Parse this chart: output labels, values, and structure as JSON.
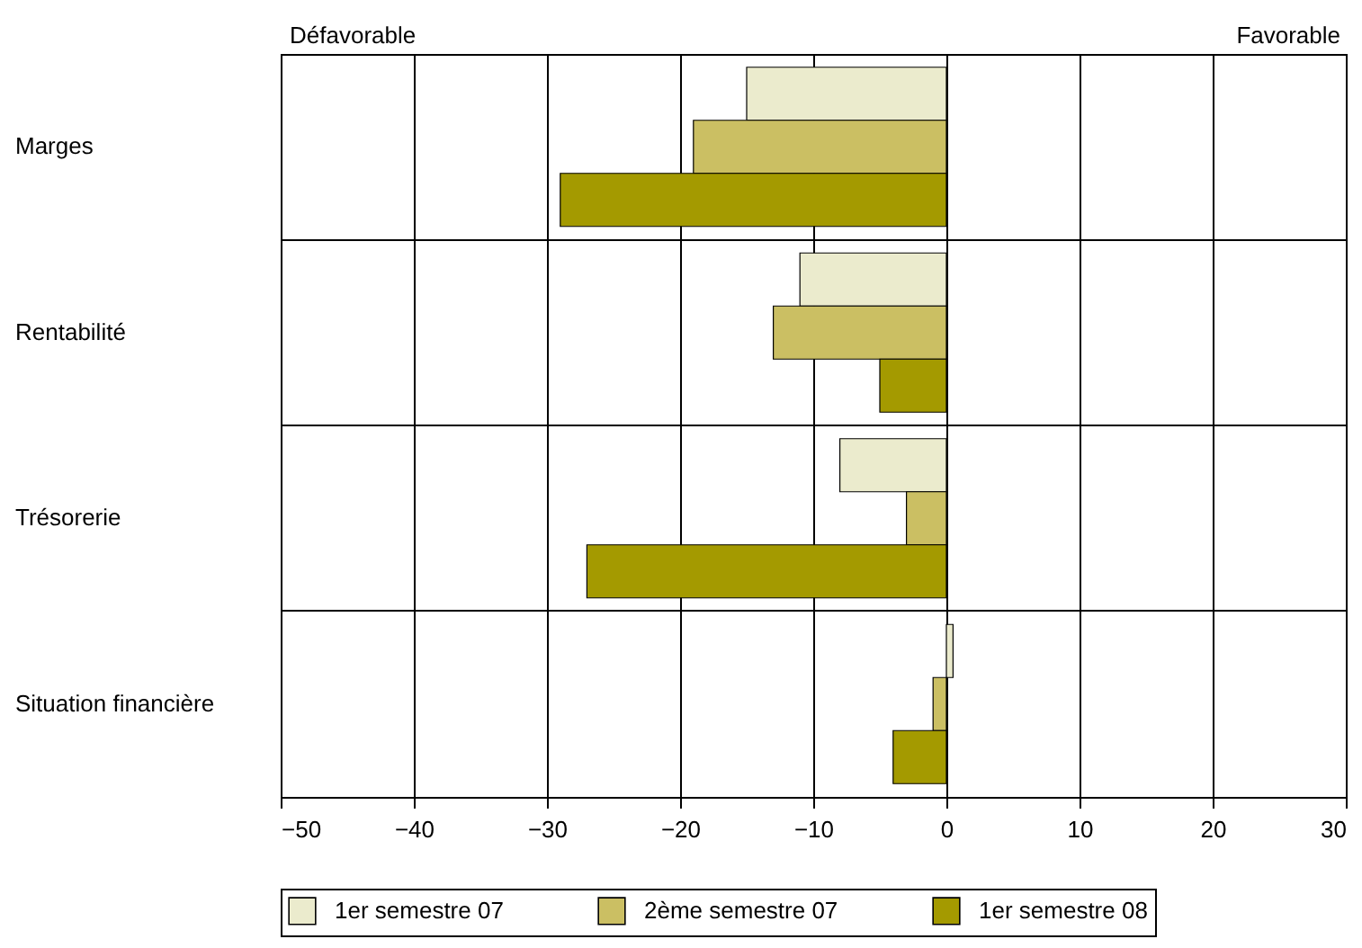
{
  "chart_data": {
    "type": "bar",
    "orientation": "horizontal",
    "categories": [
      "Marges",
      "Rentabilité",
      "Trésorerie",
      "Situation financière"
    ],
    "series": [
      {
        "name": "1er semestre 07",
        "color": "#ebebcd",
        "values": [
          -15,
          -11,
          -8,
          0.5
        ]
      },
      {
        "name": "2ème semestre 07",
        "color": "#cbbf63",
        "values": [
          -19,
          -13,
          -3,
          -1
        ]
      },
      {
        "name": "1er semestre 08",
        "color": "#a49a00",
        "values": [
          -29,
          -5,
          -27,
          -4
        ]
      }
    ],
    "xlim": [
      -50,
      30
    ],
    "xticks": [
      -50,
      -40,
      -30,
      -20,
      -10,
      0,
      10,
      20,
      30
    ],
    "grid": true,
    "legend": "bottom",
    "annotations": [
      "Défavorable",
      "Favorable"
    ]
  }
}
